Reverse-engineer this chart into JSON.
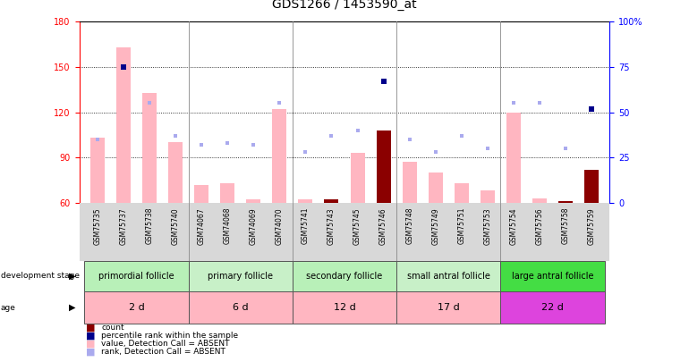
{
  "title": "GDS1266 / 1453590_at",
  "samples": [
    "GSM75735",
    "GSM75737",
    "GSM75738",
    "GSM75740",
    "GSM74067",
    "GSM74068",
    "GSM74069",
    "GSM74070",
    "GSM75741",
    "GSM75743",
    "GSM75745",
    "GSM75746",
    "GSM75748",
    "GSM75749",
    "GSM75751",
    "GSM75753",
    "GSM75754",
    "GSM75756",
    "GSM75758",
    "GSM75759"
  ],
  "bar_values": [
    103,
    163,
    133,
    100,
    72,
    73,
    62,
    122,
    62,
    62,
    93,
    108,
    87,
    80,
    73,
    68,
    120,
    63,
    61,
    82
  ],
  "bar_absent": [
    true,
    true,
    true,
    true,
    true,
    true,
    true,
    true,
    true,
    false,
    true,
    false,
    true,
    true,
    true,
    true,
    true,
    true,
    false,
    false
  ],
  "rank_pct": [
    35,
    75,
    55,
    37,
    32,
    33,
    32,
    55,
    28,
    37,
    40,
    67,
    35,
    28,
    37,
    30,
    55,
    55,
    30,
    52
  ],
  "rank_absent": [
    true,
    false,
    true,
    true,
    true,
    true,
    true,
    true,
    true,
    true,
    true,
    false,
    true,
    true,
    true,
    true,
    true,
    true,
    true,
    false
  ],
  "ylim_left": [
    60,
    180
  ],
  "ylim_right": [
    0,
    100
  ],
  "yticks_left": [
    60,
    90,
    120,
    150,
    180
  ],
  "yticks_right": [
    0,
    25,
    50,
    75,
    100
  ],
  "groups": [
    {
      "label": "primordial follicle",
      "age": "2 d",
      "start": 0,
      "end": 4,
      "dev_color": "#b8f0b8",
      "age_color": "#ffb6c1"
    },
    {
      "label": "primary follicle",
      "age": "6 d",
      "start": 4,
      "end": 8,
      "dev_color": "#c8f0c8",
      "age_color": "#ffb6c1"
    },
    {
      "label": "secondary follicle",
      "age": "12 d",
      "start": 8,
      "end": 12,
      "dev_color": "#b8f0b8",
      "age_color": "#ffb6c1"
    },
    {
      "label": "small antral follicle",
      "age": "17 d",
      "start": 12,
      "end": 16,
      "dev_color": "#c8f0c8",
      "age_color": "#ffb6c1"
    },
    {
      "label": "large antral follicle",
      "age": "22 d",
      "start": 16,
      "end": 20,
      "dev_color": "#44dd44",
      "age_color": "#dd44dd"
    }
  ],
  "absent_bar_color": "#ffb6c1",
  "present_bar_color": "#8b0000",
  "absent_rank_color": "#aaaaee",
  "present_rank_color": "#00008b",
  "bar_width": 0.55,
  "legend_items": [
    {
      "label": "count",
      "color": "#8b0000"
    },
    {
      "label": "percentile rank within the sample",
      "color": "#00008b"
    },
    {
      "label": "value, Detection Call = ABSENT",
      "color": "#ffb6c1"
    },
    {
      "label": "rank, Detection Call = ABSENT",
      "color": "#aaaaee"
    }
  ]
}
